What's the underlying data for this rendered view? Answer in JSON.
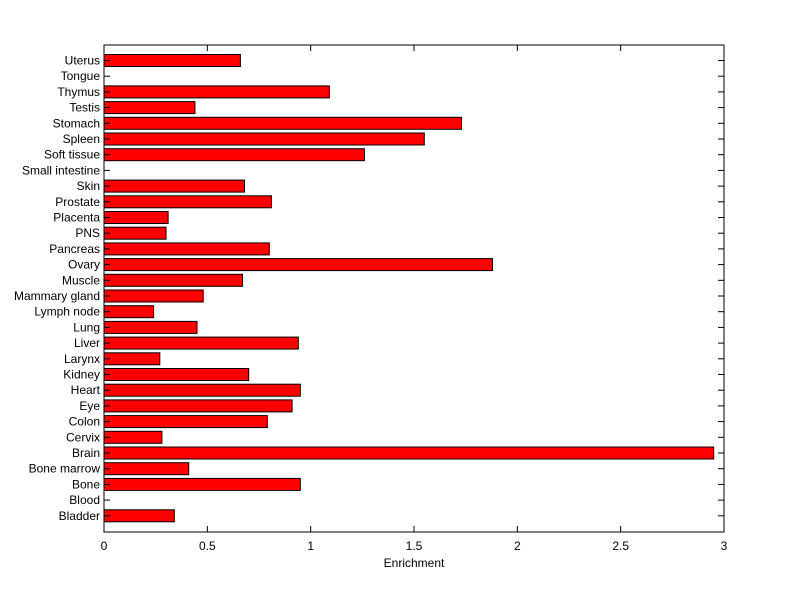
{
  "chart_data": {
    "type": "bar",
    "orientation": "horizontal",
    "categories": [
      "Uterus",
      "Tongue",
      "Thymus",
      "Testis",
      "Stomach",
      "Spleen",
      "Soft tissue",
      "Small intestine",
      "Skin",
      "Prostate",
      "Placenta",
      "PNS",
      "Pancreas",
      "Ovary",
      "Muscle",
      "Mammary gland",
      "Lymph node",
      "Lung",
      "Liver",
      "Larynx",
      "Kidney",
      "Heart",
      "Eye",
      "Colon",
      "Cervix",
      "Brain",
      "Bone marrow",
      "Bone",
      "Blood",
      "Bladder"
    ],
    "values": [
      0.66,
      0,
      1.09,
      0.44,
      1.73,
      1.55,
      1.26,
      0,
      0.68,
      0.81,
      0.31,
      0.3,
      0.8,
      1.88,
      0.67,
      0.48,
      0.24,
      0.45,
      0.94,
      0.27,
      0.7,
      0.95,
      0.91,
      0.79,
      0.28,
      2.95,
      0.41,
      0.95,
      0,
      0.34
    ],
    "xlabel": "Enrichment",
    "ylabel": "",
    "title": "",
    "xlim": [
      0,
      3
    ],
    "xticks": [
      "0",
      "0.5",
      "1",
      "1.5",
      "2",
      "2.5",
      "3"
    ],
    "bar_color": "#ff0000",
    "grid": false
  }
}
